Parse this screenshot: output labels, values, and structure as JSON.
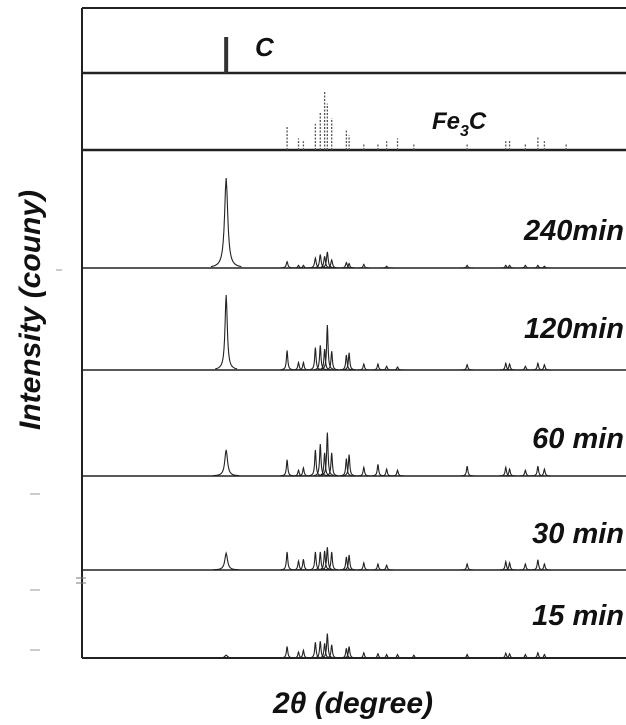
{
  "chart_data": {
    "type": "line",
    "xlabel": "2θ (degree)",
    "ylabel": "Intensity (couny)",
    "xlim": [
      0,
      100
    ],
    "grid": false,
    "legend": "none",
    "colors": {
      "line": "#222222",
      "reference": "#555555",
      "background": "#ffffff"
    },
    "reference_patterns": [
      {
        "name": "C",
        "label_main": "C",
        "label_sub": "",
        "peaks": [
          {
            "x": 26.5,
            "intensity": 100
          }
        ]
      },
      {
        "name": "Fe3C",
        "label_main": "Fe",
        "label_sub": "3",
        "label_tail": "C",
        "peaks": [
          {
            "x": 37.7,
            "intensity": 40
          },
          {
            "x": 39.8,
            "intensity": 20
          },
          {
            "x": 40.7,
            "intensity": 15
          },
          {
            "x": 42.9,
            "intensity": 45
          },
          {
            "x": 43.8,
            "intensity": 65
          },
          {
            "x": 44.6,
            "intensity": 100
          },
          {
            "x": 45.1,
            "intensity": 80
          },
          {
            "x": 45.9,
            "intensity": 55
          },
          {
            "x": 48.6,
            "intensity": 35
          },
          {
            "x": 49.1,
            "intensity": 25
          },
          {
            "x": 51.8,
            "intensity": 10
          },
          {
            "x": 54.4,
            "intensity": 12
          },
          {
            "x": 56.0,
            "intensity": 15
          },
          {
            "x": 58.0,
            "intensity": 20
          },
          {
            "x": 61.0,
            "intensity": 10
          },
          {
            "x": 70.8,
            "intensity": 12
          },
          {
            "x": 77.9,
            "intensity": 15
          },
          {
            "x": 78.6,
            "intensity": 18
          },
          {
            "x": 81.5,
            "intensity": 10
          },
          {
            "x": 83.8,
            "intensity": 22
          },
          {
            "x": 85.0,
            "intensity": 15
          },
          {
            "x": 89.0,
            "intensity": 10
          }
        ]
      }
    ],
    "patterns": [
      {
        "name": "240min",
        "label": "240min",
        "peaks": [
          {
            "x": 26.5,
            "height": 100,
            "width": 0.7
          },
          {
            "x": 37.7,
            "height": 7,
            "width": 0.35
          },
          {
            "x": 39.8,
            "height": 3,
            "width": 0.3
          },
          {
            "x": 40.7,
            "height": 3,
            "width": 0.3
          },
          {
            "x": 42.9,
            "height": 11,
            "width": 0.35
          },
          {
            "x": 43.8,
            "height": 15,
            "width": 0.35
          },
          {
            "x": 44.6,
            "height": 13,
            "width": 0.35
          },
          {
            "x": 45.1,
            "height": 18,
            "width": 0.35
          },
          {
            "x": 45.9,
            "height": 9,
            "width": 0.35
          },
          {
            "x": 48.6,
            "height": 6,
            "width": 0.35
          },
          {
            "x": 49.1,
            "height": 5,
            "width": 0.3
          },
          {
            "x": 51.8,
            "height": 4,
            "width": 0.3
          },
          {
            "x": 56.0,
            "height": 2,
            "width": 0.3
          },
          {
            "x": 70.8,
            "height": 3,
            "width": 0.3
          },
          {
            "x": 77.9,
            "height": 3,
            "width": 0.3
          },
          {
            "x": 78.6,
            "height": 3,
            "width": 0.3
          },
          {
            "x": 81.5,
            "height": 3,
            "width": 0.3
          },
          {
            "x": 83.8,
            "height": 3,
            "width": 0.3
          },
          {
            "x": 85.0,
            "height": 2,
            "width": 0.3
          }
        ]
      },
      {
        "name": "120min",
        "label": "120min",
        "peaks": [
          {
            "x": 26.5,
            "height": 100,
            "width": 0.5
          },
          {
            "x": 37.7,
            "height": 26,
            "width": 0.3
          },
          {
            "x": 39.8,
            "height": 10,
            "width": 0.3
          },
          {
            "x": 40.7,
            "height": 10,
            "width": 0.3
          },
          {
            "x": 42.9,
            "height": 30,
            "width": 0.3
          },
          {
            "x": 43.8,
            "height": 33,
            "width": 0.3
          },
          {
            "x": 44.6,
            "height": 28,
            "width": 0.3
          },
          {
            "x": 45.1,
            "height": 60,
            "width": 0.3
          },
          {
            "x": 45.9,
            "height": 25,
            "width": 0.3
          },
          {
            "x": 48.6,
            "height": 20,
            "width": 0.3
          },
          {
            "x": 49.1,
            "height": 23,
            "width": 0.3
          },
          {
            "x": 51.8,
            "height": 8,
            "width": 0.3
          },
          {
            "x": 54.4,
            "height": 8,
            "width": 0.3
          },
          {
            "x": 56.0,
            "height": 5,
            "width": 0.3
          },
          {
            "x": 58.0,
            "height": 4,
            "width": 0.3
          },
          {
            "x": 70.8,
            "height": 7,
            "width": 0.3
          },
          {
            "x": 77.9,
            "height": 9,
            "width": 0.3
          },
          {
            "x": 78.6,
            "height": 8,
            "width": 0.3
          },
          {
            "x": 81.5,
            "height": 5,
            "width": 0.3
          },
          {
            "x": 83.8,
            "height": 9,
            "width": 0.3
          },
          {
            "x": 85.0,
            "height": 7,
            "width": 0.3
          }
        ]
      },
      {
        "name": "60 min",
        "label": "60 min",
        "peaks": [
          {
            "x": 26.5,
            "height": 45,
            "width": 0.6
          },
          {
            "x": 37.7,
            "height": 28,
            "width": 0.3
          },
          {
            "x": 39.8,
            "height": 10,
            "width": 0.3
          },
          {
            "x": 40.7,
            "height": 14,
            "width": 0.3
          },
          {
            "x": 42.9,
            "height": 45,
            "width": 0.3
          },
          {
            "x": 43.8,
            "height": 55,
            "width": 0.3
          },
          {
            "x": 44.6,
            "height": 40,
            "width": 0.3
          },
          {
            "x": 45.1,
            "height": 75,
            "width": 0.3
          },
          {
            "x": 45.9,
            "height": 40,
            "width": 0.3
          },
          {
            "x": 48.6,
            "height": 30,
            "width": 0.3
          },
          {
            "x": 49.1,
            "height": 37,
            "width": 0.3
          },
          {
            "x": 51.8,
            "height": 15,
            "width": 0.3
          },
          {
            "x": 54.4,
            "height": 20,
            "width": 0.3
          },
          {
            "x": 56.0,
            "height": 12,
            "width": 0.3
          },
          {
            "x": 58.0,
            "height": 10,
            "width": 0.3
          },
          {
            "x": 70.8,
            "height": 17,
            "width": 0.3
          },
          {
            "x": 77.9,
            "height": 15,
            "width": 0.3
          },
          {
            "x": 78.6,
            "height": 12,
            "width": 0.3
          },
          {
            "x": 81.5,
            "height": 10,
            "width": 0.3
          },
          {
            "x": 83.8,
            "height": 17,
            "width": 0.3
          },
          {
            "x": 85.0,
            "height": 12,
            "width": 0.3
          }
        ]
      },
      {
        "name": "30 min",
        "label": "30 min",
        "peaks": [
          {
            "x": 26.5,
            "height": 28,
            "width": 0.6
          },
          {
            "x": 37.7,
            "height": 30,
            "width": 0.3
          },
          {
            "x": 39.8,
            "height": 15,
            "width": 0.3
          },
          {
            "x": 40.7,
            "height": 18,
            "width": 0.3
          },
          {
            "x": 42.9,
            "height": 30,
            "width": 0.3
          },
          {
            "x": 43.8,
            "height": 30,
            "width": 0.3
          },
          {
            "x": 44.6,
            "height": 32,
            "width": 0.3
          },
          {
            "x": 45.1,
            "height": 38,
            "width": 0.3
          },
          {
            "x": 45.9,
            "height": 30,
            "width": 0.3
          },
          {
            "x": 48.6,
            "height": 22,
            "width": 0.3
          },
          {
            "x": 49.1,
            "height": 25,
            "width": 0.3
          },
          {
            "x": 51.8,
            "height": 12,
            "width": 0.3
          },
          {
            "x": 54.4,
            "height": 10,
            "width": 0.3
          },
          {
            "x": 56.0,
            "height": 8,
            "width": 0.3
          },
          {
            "x": 70.8,
            "height": 10,
            "width": 0.3
          },
          {
            "x": 77.9,
            "height": 14,
            "width": 0.3
          },
          {
            "x": 78.6,
            "height": 12,
            "width": 0.3
          },
          {
            "x": 81.5,
            "height": 10,
            "width": 0.3
          },
          {
            "x": 83.8,
            "height": 17,
            "width": 0.3
          },
          {
            "x": 85.0,
            "height": 10,
            "width": 0.3
          }
        ]
      },
      {
        "name": "15 min",
        "label": "15 min",
        "peaks": [
          {
            "x": 26.5,
            "height": 8,
            "width": 0.6
          },
          {
            "x": 37.7,
            "height": 33,
            "width": 0.3
          },
          {
            "x": 39.8,
            "height": 17,
            "width": 0.3
          },
          {
            "x": 40.7,
            "height": 22,
            "width": 0.3
          },
          {
            "x": 42.9,
            "height": 45,
            "width": 0.3
          },
          {
            "x": 43.8,
            "height": 48,
            "width": 0.3
          },
          {
            "x": 44.6,
            "height": 42,
            "width": 0.3
          },
          {
            "x": 45.1,
            "height": 70,
            "width": 0.3
          },
          {
            "x": 45.9,
            "height": 38,
            "width": 0.3
          },
          {
            "x": 48.6,
            "height": 28,
            "width": 0.3
          },
          {
            "x": 49.1,
            "height": 33,
            "width": 0.3
          },
          {
            "x": 51.8,
            "height": 15,
            "width": 0.3
          },
          {
            "x": 54.4,
            "height": 12,
            "width": 0.3
          },
          {
            "x": 56.0,
            "height": 10,
            "width": 0.3
          },
          {
            "x": 58.0,
            "height": 10,
            "width": 0.3
          },
          {
            "x": 61.0,
            "height": 8,
            "width": 0.3
          },
          {
            "x": 70.8,
            "height": 10,
            "width": 0.3
          },
          {
            "x": 77.9,
            "height": 14,
            "width": 0.3
          },
          {
            "x": 78.6,
            "height": 12,
            "width": 0.3
          },
          {
            "x": 81.5,
            "height": 10,
            "width": 0.3
          },
          {
            "x": 83.8,
            "height": 15,
            "width": 0.3
          },
          {
            "x": 85.0,
            "height": 10,
            "width": 0.3
          }
        ]
      }
    ]
  }
}
